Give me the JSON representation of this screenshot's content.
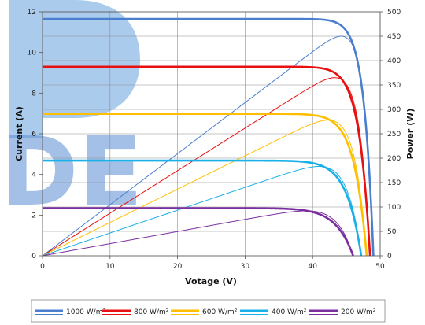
{
  "chart_data": {
    "type": "line",
    "xlabel": "Votage (V)",
    "ylabel_left": "Current (A)",
    "ylabel_right": "Power (W)",
    "xlim": [
      0,
      50
    ],
    "ylim_left": [
      0,
      12
    ],
    "ylim_right": [
      0,
      500
    ],
    "x_ticks": [
      0,
      10,
      20,
      30,
      40,
      50
    ],
    "y_left_ticks": [
      0,
      2,
      4,
      6,
      8,
      10,
      12
    ],
    "y_right_ticks": [
      0,
      50,
      100,
      150,
      200,
      250,
      300,
      350,
      400,
      450,
      500
    ],
    "grid": true,
    "legend_position": "bottom",
    "watermark_text": "DE",
    "series": [
      {
        "name": "1000 W/m²",
        "color": "#4a7fcf",
        "isc": 11.65,
        "voc": 49.0,
        "n": 35,
        "pmax": 450,
        "vmp": 41.0
      },
      {
        "name": "800 W/m²",
        "color": "#e81010",
        "isc": 9.3,
        "voc": 48.5,
        "n": 30,
        "pmax": 365,
        "vmp": 41.5
      },
      {
        "name": "600 W/m²",
        "color": "#ffbf00",
        "isc": 6.98,
        "voc": 48.0,
        "n": 26,
        "pmax": 278,
        "vmp": 42.0
      },
      {
        "name": "400 W/m²",
        "color": "#1ab0e8",
        "isc": 4.68,
        "voc": 47.2,
        "n": 22,
        "pmax": 183,
        "vmp": 42.0
      },
      {
        "name": "200 W/m²",
        "color": "#7a2ea0",
        "isc": 2.34,
        "voc": 46.0,
        "n": 18,
        "pmax": 92,
        "vmp": 41.5
      }
    ]
  }
}
